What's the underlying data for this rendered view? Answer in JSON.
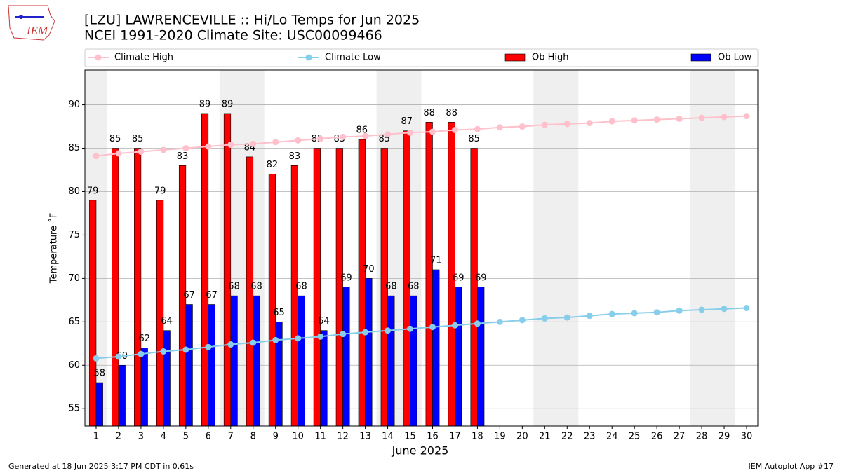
{
  "logo_text": "IEM",
  "footer": {
    "left": "Generated at 18 Jun 2025 3:17 PM CDT in 0.61s",
    "right": "IEM Autoplot App #17"
  },
  "chart_data": {
    "type": "bar",
    "title": "[LZU] LAWRENCEVILLE :: Hi/Lo Temps for Jun 2025",
    "subtitle": "NCEI 1991-2020 Climate Site: USC00099466",
    "xlabel": "June 2025",
    "ylabel": "Temperature ˚F",
    "x": [
      1,
      2,
      3,
      4,
      5,
      6,
      7,
      8,
      9,
      10,
      11,
      12,
      13,
      14,
      15,
      16,
      17,
      18,
      19,
      20,
      21,
      22,
      23,
      24,
      25,
      26,
      27,
      28,
      29,
      30
    ],
    "xlim": [
      0.5,
      30.5
    ],
    "xticks": [
      1,
      2,
      3,
      4,
      5,
      6,
      7,
      8,
      9,
      10,
      11,
      12,
      13,
      14,
      15,
      16,
      17,
      18,
      19,
      20,
      21,
      22,
      23,
      24,
      25,
      26,
      27,
      28,
      29,
      30
    ],
    "ylim": [
      53,
      94
    ],
    "yticks": [
      55,
      60,
      65,
      70,
      75,
      80,
      85,
      90
    ],
    "grid": true,
    "shaded_days": [
      1,
      7,
      8,
      14,
      15,
      21,
      22,
      28,
      29
    ],
    "legend": "top",
    "series": [
      {
        "name": "Climate High",
        "type": "line",
        "color": "#ffc0cb",
        "values": [
          84.1,
          84.4,
          84.6,
          84.8,
          85.0,
          85.2,
          85.4,
          85.5,
          85.7,
          85.9,
          86.1,
          86.3,
          86.4,
          86.6,
          86.8,
          86.9,
          87.1,
          87.2,
          87.4,
          87.5,
          87.7,
          87.8,
          87.9,
          88.1,
          88.2,
          88.3,
          88.4,
          88.5,
          88.6,
          88.7
        ]
      },
      {
        "name": "Climate Low",
        "type": "line",
        "color": "#87ceeb",
        "values": [
          60.8,
          61.0,
          61.3,
          61.6,
          61.8,
          62.1,
          62.4,
          62.6,
          62.9,
          63.1,
          63.3,
          63.6,
          63.8,
          64.0,
          64.2,
          64.4,
          64.6,
          64.8,
          65.0,
          65.2,
          65.4,
          65.5,
          65.7,
          65.9,
          66.0,
          66.1,
          66.3,
          66.4,
          66.5,
          66.6
        ]
      },
      {
        "name": "Ob High",
        "type": "bar",
        "color": "#ff0000",
        "values": [
          79,
          85,
          85,
          79,
          83,
          89,
          89,
          84,
          82,
          83,
          85,
          85,
          86,
          85,
          87,
          88,
          88,
          85,
          null,
          null,
          null,
          null,
          null,
          null,
          null,
          null,
          null,
          null,
          null,
          null
        ]
      },
      {
        "name": "Ob Low",
        "type": "bar",
        "color": "#0000ff",
        "values": [
          58,
          60,
          62,
          64,
          67,
          67,
          68,
          68,
          65,
          68,
          64,
          69,
          70,
          68,
          68,
          71,
          69,
          69,
          null,
          null,
          null,
          null,
          null,
          null,
          null,
          null,
          null,
          null,
          null,
          null
        ]
      }
    ]
  }
}
